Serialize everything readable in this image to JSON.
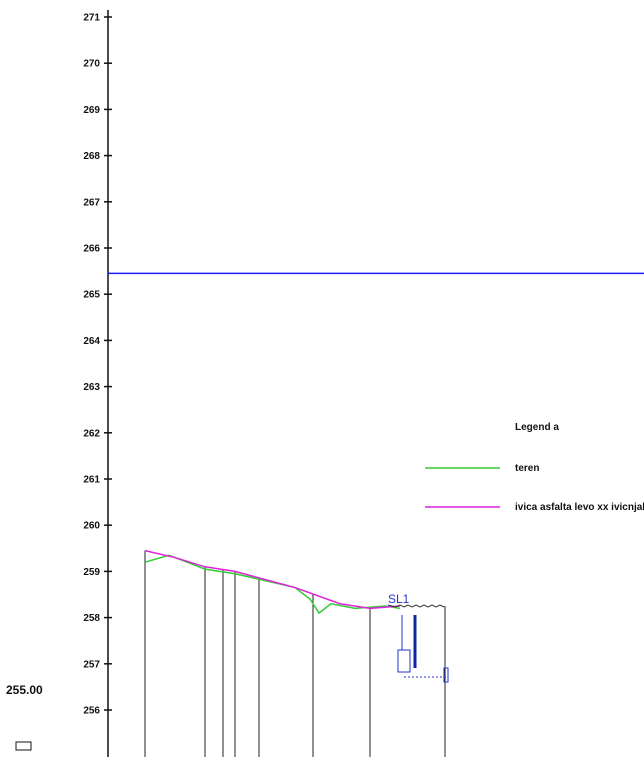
{
  "chart_data": {
    "type": "line",
    "title": "",
    "xlabel": "",
    "ylabel": "",
    "y_ticks": [
      271,
      270,
      269,
      268,
      267,
      266,
      265,
      264,
      263,
      262,
      261,
      260,
      259,
      258,
      257,
      256
    ],
    "y_tick_labels": [
      "271",
      "270",
      "269",
      "268",
      "267",
      "266",
      "265",
      "264",
      "263",
      "262",
      "261",
      "260",
      "259",
      "258",
      "257",
      "256"
    ],
    "ylim": [
      255.2,
      271.4
    ],
    "grid": false,
    "reference_line": {
      "y": 265.45,
      "color": "#1a1aff"
    },
    "station_lines": [
      0.0,
      0.2,
      0.26,
      0.3,
      0.38,
      0.56,
      0.75,
      1.0
    ],
    "series": [
      {
        "name": "teren",
        "color": "#33cc33",
        "points": [
          [
            0.0,
            259.2
          ],
          [
            0.08,
            259.35
          ],
          [
            0.2,
            259.05
          ],
          [
            0.3,
            258.95
          ],
          [
            0.5,
            258.65
          ],
          [
            0.55,
            258.4
          ],
          [
            0.58,
            258.1
          ],
          [
            0.62,
            258.3
          ],
          [
            0.7,
            258.2
          ],
          [
            0.8,
            258.25
          ],
          [
            0.85,
            258.2
          ]
        ]
      },
      {
        "name": "ivica asfalta levo xx ivicnjak",
        "color": "#dd22dd",
        "points": [
          [
            0.0,
            259.45
          ],
          [
            0.1,
            259.3
          ],
          [
            0.2,
            259.1
          ],
          [
            0.3,
            259.0
          ],
          [
            0.5,
            258.65
          ],
          [
            0.65,
            258.3
          ],
          [
            0.75,
            258.2
          ],
          [
            0.85,
            258.25
          ]
        ]
      }
    ],
    "legend": {
      "title": "Legend a",
      "placement": "right"
    },
    "annotations": {
      "station_label": "SL1",
      "side_value": "255.00",
      "side_tick": "256"
    }
  },
  "colors": {
    "axis": "#111111",
    "reference": "#1a1aff",
    "annotation": "#2233cc"
  }
}
